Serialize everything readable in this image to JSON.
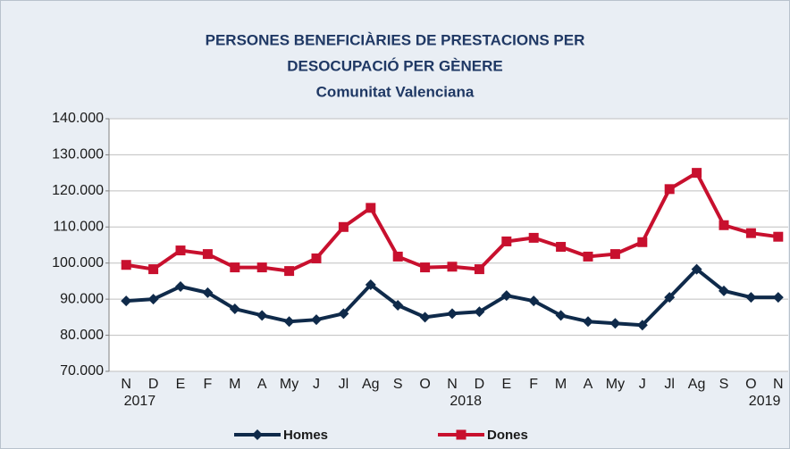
{
  "chart_data": {
    "type": "line",
    "title": [
      "PERSONES BENEFICIÀRIES DE PRESTACIONS PER",
      "DESOCUPACIÓ PER GÈNERE"
    ],
    "subtitle": "Comunitat Valenciana",
    "categories": [
      "N",
      "D",
      "E",
      "F",
      "M",
      "A",
      "My",
      "J",
      "Jl",
      "Ag",
      "S",
      "O",
      "N",
      "D",
      "E",
      "F",
      "M",
      "A",
      "My",
      "J",
      "Jl",
      "Ag",
      "S",
      "O",
      "N"
    ],
    "category_years": [
      "2017",
      null,
      null,
      null,
      null,
      null,
      null,
      null,
      null,
      null,
      null,
      null,
      "2018",
      null,
      null,
      null,
      null,
      null,
      null,
      null,
      null,
      null,
      null,
      "2019",
      null
    ],
    "series": [
      {
        "name": "Homes",
        "color": "#0f2a4a",
        "marker": "diamond",
        "values": [
          89500,
          90000,
          93500,
          91800,
          87300,
          85500,
          83800,
          84300,
          86000,
          94000,
          88300,
          85000,
          86000,
          86500,
          91000,
          89500,
          85500,
          83800,
          83300,
          82800,
          90500,
          98300,
          92300,
          90500,
          90500
        ]
      },
      {
        "name": "Dones",
        "color": "#c8102e",
        "marker": "square",
        "values": [
          99500,
          98300,
          103500,
          102500,
          98800,
          98800,
          97800,
          101300,
          110000,
          115300,
          101800,
          98800,
          99000,
          98300,
          106000,
          107000,
          104500,
          101800,
          102500,
          105800,
          120500,
          125000,
          110500,
          108300,
          107300
        ]
      }
    ],
    "ylim": [
      70000,
      140000
    ],
    "yticks": [
      {
        "value": 70000,
        "label": "70.000"
      },
      {
        "value": 80000,
        "label": "80.000"
      },
      {
        "value": 90000,
        "label": "90.000"
      },
      {
        "value": 100000,
        "label": "100.000"
      },
      {
        "value": 110000,
        "label": "110.000"
      },
      {
        "value": 120000,
        "label": "120.000"
      },
      {
        "value": 130000,
        "label": "130.000"
      },
      {
        "value": 140000,
        "label": "140.000"
      }
    ],
    "grid": true,
    "legend": "bottom"
  }
}
